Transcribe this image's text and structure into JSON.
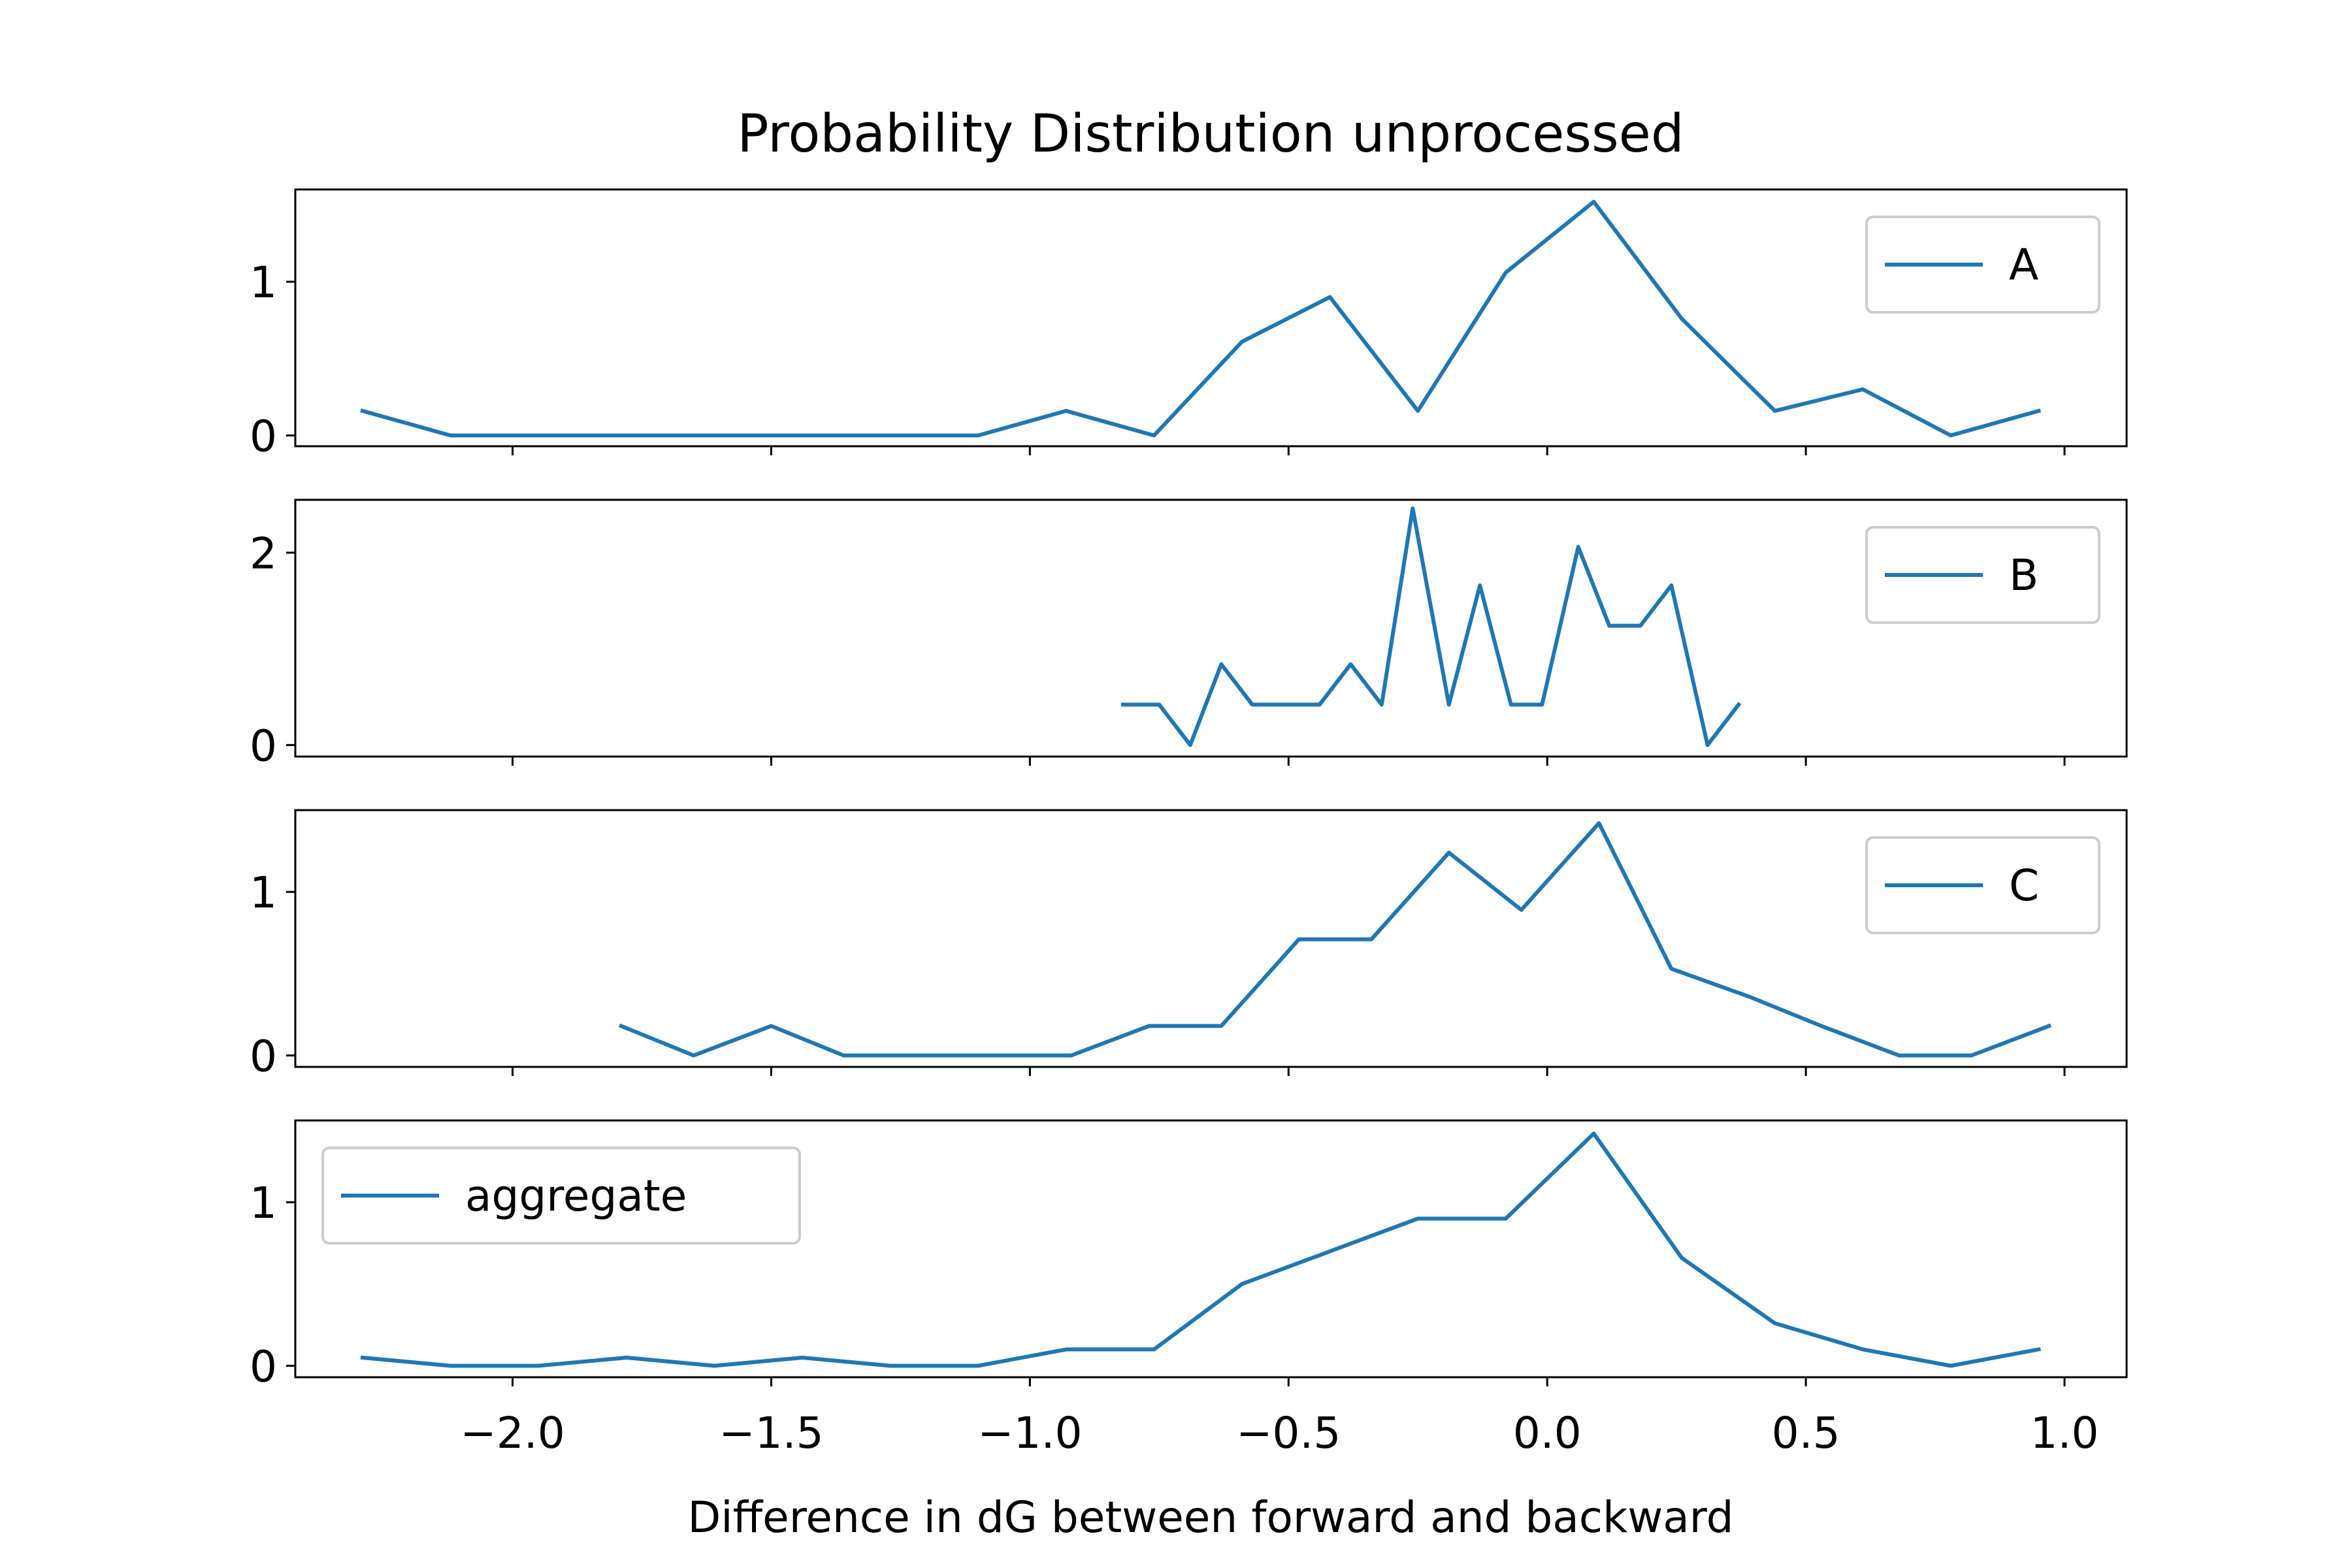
{
  "chart_data": {
    "type": "line",
    "title": "Probability Distribution unprocessed",
    "xlabel": "Difference in dG between forward and backward",
    "xlim": [
      -2.42,
      1.12
    ],
    "xticks": [
      -2.0,
      -1.5,
      -1.0,
      -0.5,
      0.0,
      0.5,
      1.0
    ],
    "xtick_labels": [
      "−2.0",
      "−1.5",
      "−1.0",
      "−0.5",
      "0.0",
      "0.5",
      "1.0"
    ],
    "color": "#1f77b4",
    "grid": false,
    "panels": [
      {
        "name": "A",
        "legend_loc": "upper right",
        "ylim": [
          -0.07,
          1.6
        ],
        "yticks": [
          0,
          1
        ],
        "ytick_labels": [
          "0",
          "1"
        ],
        "x": [
          -2.29,
          -2.12,
          -1.95,
          -1.78,
          -1.61,
          -1.44,
          -1.27,
          -1.1,
          -0.93,
          -0.76,
          -0.59,
          -0.42,
          -0.25,
          -0.08,
          0.09,
          0.26,
          0.44,
          0.61,
          0.78,
          0.95
        ],
        "y": [
          0.16,
          0.0,
          0.0,
          0.0,
          0.0,
          0.0,
          0.0,
          0.0,
          0.16,
          0.0,
          0.61,
          0.9,
          0.16,
          1.06,
          1.52,
          0.76,
          0.16,
          0.3,
          0.0,
          0.16
        ]
      },
      {
        "name": "B",
        "legend_loc": "upper right",
        "ylim": [
          -0.12,
          2.55
        ],
        "yticks": [
          0,
          2
        ],
        "ytick_labels": [
          "0",
          "2"
        ],
        "x": [
          -0.82,
          -0.75,
          -0.69,
          -0.63,
          -0.57,
          -0.51,
          -0.44,
          -0.38,
          -0.32,
          -0.26,
          -0.19,
          -0.13,
          -0.07,
          -0.01,
          0.06,
          0.12,
          0.18,
          0.24,
          0.31,
          0.37
        ],
        "y": [
          0.42,
          0.42,
          0.0,
          0.84,
          0.42,
          0.42,
          0.42,
          0.84,
          0.42,
          2.46,
          0.42,
          1.66,
          0.42,
          0.42,
          2.06,
          1.24,
          1.24,
          1.66,
          0.0,
          0.42
        ]
      },
      {
        "name": "C",
        "legend_loc": "upper right",
        "ylim": [
          -0.07,
          1.5
        ],
        "yticks": [
          0,
          1
        ],
        "ytick_labels": [
          "0",
          "1"
        ],
        "x": [
          -1.79,
          -1.65,
          -1.5,
          -1.36,
          -1.21,
          -1.07,
          -0.92,
          -0.77,
          -0.63,
          -0.48,
          -0.34,
          -0.19,
          -0.05,
          0.1,
          0.24,
          0.39,
          0.53,
          0.68,
          0.82,
          0.97
        ],
        "y": [
          0.18,
          0.0,
          0.18,
          0.0,
          0.0,
          0.0,
          0.0,
          0.18,
          0.18,
          0.71,
          0.71,
          1.24,
          0.89,
          1.42,
          0.53,
          0.36,
          0.18,
          0.0,
          0.0,
          0.18
        ]
      },
      {
        "name": "aggregate",
        "legend_loc": "upper left",
        "ylim": [
          -0.07,
          1.5
        ],
        "yticks": [
          0,
          1
        ],
        "ytick_labels": [
          "0",
          "1"
        ],
        "x": [
          -2.29,
          -2.12,
          -1.95,
          -1.78,
          -1.61,
          -1.44,
          -1.27,
          -1.1,
          -0.93,
          -0.76,
          -0.59,
          -0.42,
          -0.25,
          -0.08,
          0.09,
          0.26,
          0.44,
          0.61,
          0.78,
          0.95
        ],
        "y": [
          0.05,
          0.0,
          0.0,
          0.05,
          0.0,
          0.05,
          0.0,
          0.0,
          0.1,
          0.1,
          0.5,
          0.7,
          0.9,
          0.9,
          1.42,
          0.66,
          0.26,
          0.1,
          0.0,
          0.1
        ]
      }
    ]
  }
}
